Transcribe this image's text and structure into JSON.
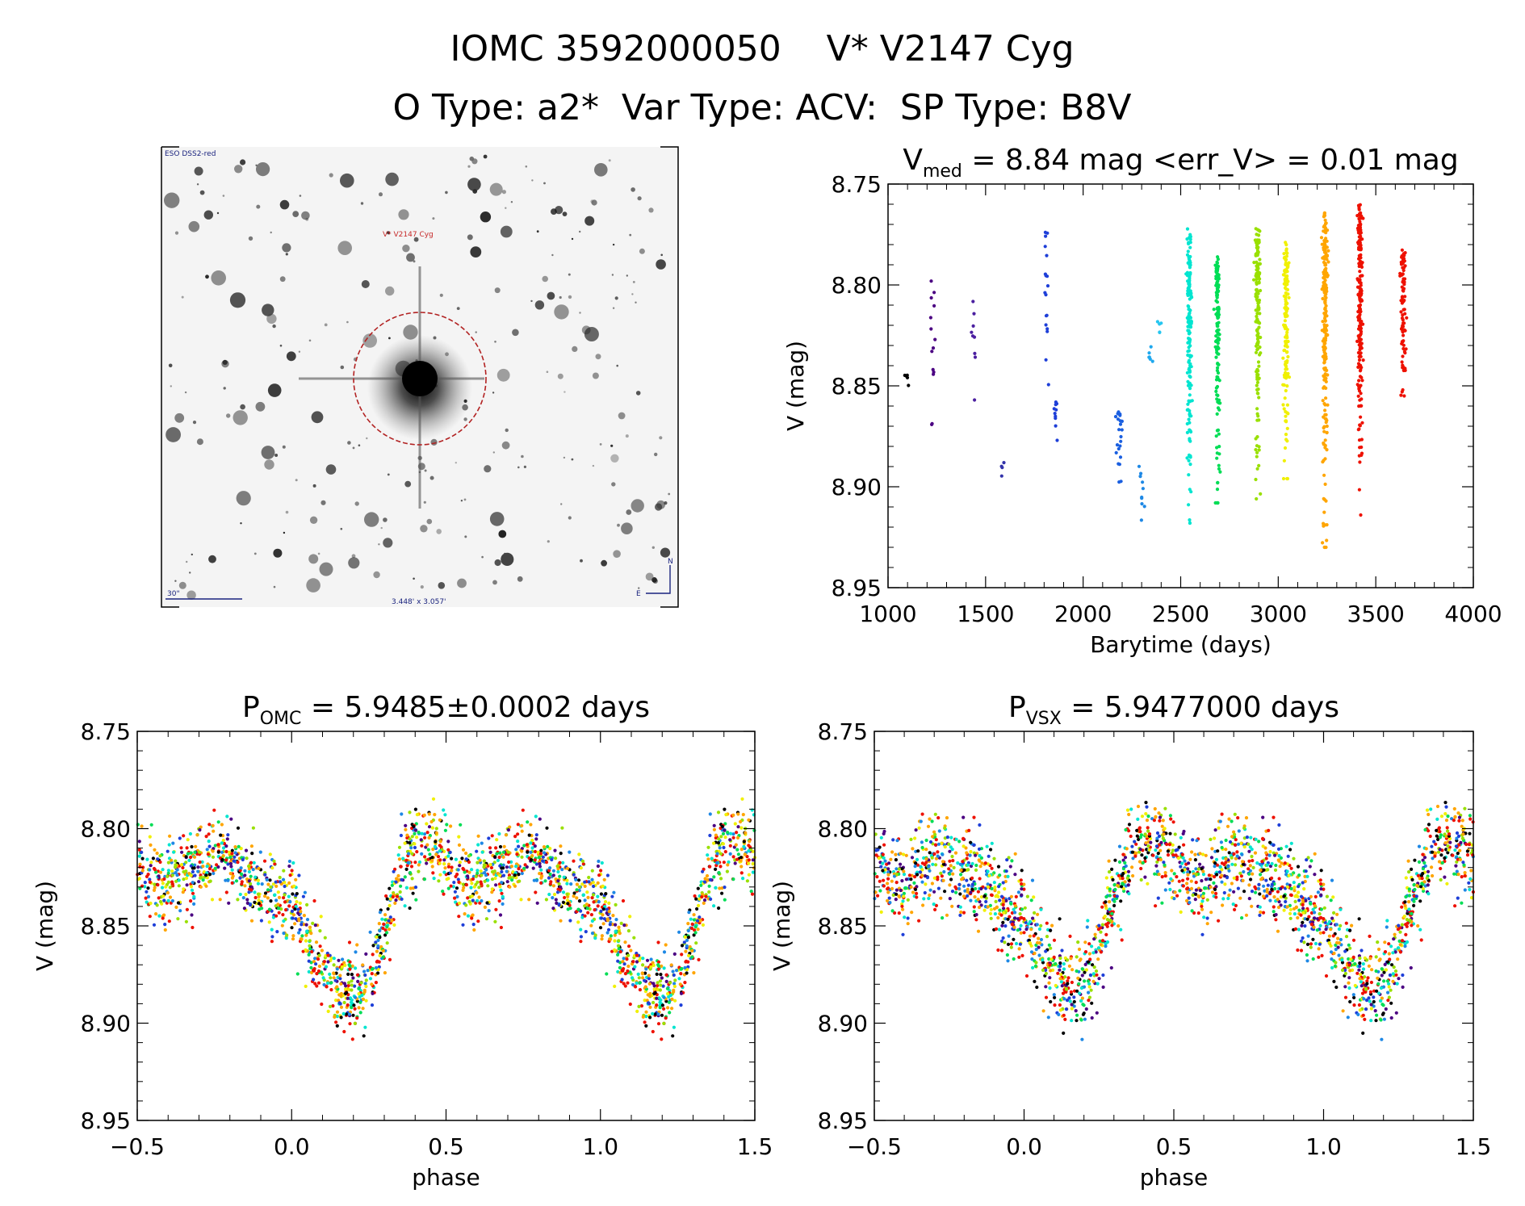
{
  "header": {
    "title": "IOMC 3592000050    V* V2147 Cyg",
    "subtitle": "O Type: a2*  Var Type: ACV:  SP Type: B8V"
  },
  "finder": {
    "survey_label": "ESO DSS2-red",
    "target_label": "V* V2147 Cyg",
    "scale_label": "30\"",
    "fov_label": "3.448' x 3.057'",
    "north_label": "N",
    "east_label": "E"
  },
  "chart_data": [
    {
      "id": "lightcurve",
      "type": "scatter",
      "title": {
        "base": "V",
        "sub": "med",
        "rest": " = 8.84 mag <err_V> = 0.01 mag"
      },
      "xlabel": "Barytime (days)",
      "ylabel": "V (mag)",
      "xlim": [
        1000,
        4000
      ],
      "ylim": [
        8.95,
        8.75
      ],
      "y_inverted": true,
      "xticks": [
        "1000",
        "1500",
        "2000",
        "2500",
        "3000",
        "3500",
        "4000"
      ],
      "xtick_values": [
        1000,
        1500,
        2000,
        2500,
        3000,
        3500,
        4000
      ],
      "yticks": [
        "8.75",
        "8.80",
        "8.85",
        "8.90",
        "8.95"
      ],
      "ytick_values": [
        8.75,
        8.8,
        8.85,
        8.9,
        8.95
      ],
      "clusters": [
        {
          "x": 1095,
          "y_min": 8.843,
          "y_max": 8.85,
          "color": "#000000",
          "n": 6
        },
        {
          "x": 1230,
          "y_min": 8.798,
          "y_max": 8.871,
          "color": "#4b0082",
          "n": 14
        },
        {
          "x": 1440,
          "y_min": 8.806,
          "y_max": 8.857,
          "color": "#4b1fa0",
          "n": 9
        },
        {
          "x": 1585,
          "y_min": 8.888,
          "y_max": 8.895,
          "color": "#3333aa",
          "n": 4
        },
        {
          "x": 1810,
          "y_min": 8.77,
          "y_max": 8.894,
          "color": "#1e3fd8",
          "n": 18
        },
        {
          "x": 1860,
          "y_min": 8.855,
          "y_max": 8.877,
          "color": "#1e3fd8",
          "n": 10
        },
        {
          "x": 2185,
          "y_min": 8.862,
          "y_max": 8.906,
          "color": "#1a5fe0",
          "n": 22
        },
        {
          "x": 2300,
          "y_min": 8.886,
          "y_max": 8.925,
          "color": "#1e88e5",
          "n": 10
        },
        {
          "x": 2345,
          "y_min": 8.83,
          "y_max": 8.84,
          "color": "#1fa8ee",
          "n": 6
        },
        {
          "x": 2385,
          "y_min": 8.815,
          "y_max": 8.826,
          "color": "#26c6f0",
          "n": 5
        },
        {
          "x": 2545,
          "y_min": 8.771,
          "y_max": 8.918,
          "color": "#00e5d0",
          "n": 160
        },
        {
          "x": 2690,
          "y_min": 8.786,
          "y_max": 8.908,
          "color": "#00dd55",
          "n": 140
        },
        {
          "x": 2895,
          "y_min": 8.772,
          "y_max": 8.906,
          "color": "#99e000",
          "n": 160
        },
        {
          "x": 3040,
          "y_min": 8.778,
          "y_max": 8.896,
          "color": "#f0f000",
          "n": 140
        },
        {
          "x": 3240,
          "y_min": 8.764,
          "y_max": 8.93,
          "color": "#ffa500",
          "n": 220
        },
        {
          "x": 3420,
          "y_min": 8.76,
          "y_max": 8.914,
          "color": "#ee1100",
          "n": 200
        },
        {
          "x": 3640,
          "y_min": 8.782,
          "y_max": 8.855,
          "color": "#ee1100",
          "n": 90
        }
      ]
    },
    {
      "id": "phase-omc",
      "type": "scatter",
      "title": {
        "base": "P",
        "sub": "OMC",
        "rest": " = 5.9485±0.0002 days"
      },
      "xlabel": "phase",
      "ylabel": "V (mag)",
      "xlim": [
        -0.5,
        1.5
      ],
      "ylim": [
        8.95,
        8.75
      ],
      "y_inverted": true,
      "xticks": [
        "−0.5",
        "0.0",
        "0.5",
        "1.0",
        "1.5"
      ],
      "xtick_values": [
        -0.5,
        0.0,
        0.5,
        1.0,
        1.5
      ],
      "yticks": [
        "8.75",
        "8.80",
        "8.85",
        "8.90",
        "8.95"
      ],
      "ytick_values": [
        8.75,
        8.8,
        8.85,
        8.9,
        8.95
      ],
      "phase_curve": {
        "phase": [
          0.0,
          0.05,
          0.1,
          0.15,
          0.2,
          0.25,
          0.3,
          0.35,
          0.4,
          0.45,
          0.5,
          0.55,
          0.6,
          0.65,
          0.7,
          0.75,
          0.8,
          0.85,
          0.9,
          0.95,
          1.0
        ],
        "mag": [
          8.838,
          8.858,
          8.872,
          8.882,
          8.886,
          8.878,
          8.855,
          8.825,
          8.808,
          8.805,
          8.815,
          8.825,
          8.828,
          8.825,
          8.818,
          8.812,
          8.816,
          8.825,
          8.83,
          8.834,
          8.838
        ],
        "scatter": 0.018,
        "n_points": 1100,
        "colors": [
          "#00e5d0",
          "#00dd55",
          "#99e000",
          "#f0f000",
          "#ffa500",
          "#ee1100",
          "#ee1100",
          "#ffa500",
          "#1e3fd8",
          "#4b0082",
          "#1e88e5",
          "#000000"
        ]
      }
    },
    {
      "id": "phase-vsx",
      "type": "scatter",
      "title": {
        "base": "P",
        "sub": "VSX",
        "rest": " = 5.9477000 days"
      },
      "xlabel": "phase",
      "ylabel": "V (mag)",
      "xlim": [
        -0.5,
        1.5
      ],
      "ylim": [
        8.95,
        8.75
      ],
      "y_inverted": true,
      "xticks": [
        "−0.5",
        "0.0",
        "0.5",
        "1.0",
        "1.5"
      ],
      "xtick_values": [
        -0.5,
        0.0,
        0.5,
        1.0,
        1.5
      ],
      "yticks": [
        "8.75",
        "8.80",
        "8.85",
        "8.90",
        "8.95"
      ],
      "ytick_values": [
        8.75,
        8.8,
        8.85,
        8.9,
        8.95
      ],
      "phase_curve": {
        "phase": [
          0.0,
          0.05,
          0.1,
          0.15,
          0.2,
          0.25,
          0.3,
          0.35,
          0.4,
          0.45,
          0.5,
          0.55,
          0.6,
          0.65,
          0.7,
          0.75,
          0.8,
          0.85,
          0.9,
          0.95,
          1.0
        ],
        "mag": [
          8.845,
          8.862,
          8.875,
          8.884,
          8.88,
          8.862,
          8.835,
          8.812,
          8.806,
          8.81,
          8.818,
          8.826,
          8.826,
          8.822,
          8.815,
          8.815,
          8.822,
          8.83,
          8.836,
          8.84,
          8.845
        ],
        "scatter": 0.02,
        "n_points": 1100,
        "colors": [
          "#00e5d0",
          "#00dd55",
          "#99e000",
          "#f0f000",
          "#ffa500",
          "#ee1100",
          "#ee1100",
          "#ffa500",
          "#1e3fd8",
          "#4b0082",
          "#1e88e5",
          "#000000"
        ]
      }
    }
  ]
}
